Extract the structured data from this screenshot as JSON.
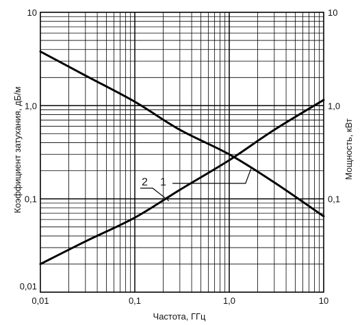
{
  "chart_data": {
    "type": "line",
    "xlabel": "Частота, ГГц",
    "ylabel_left": "Коэффициент затухания, дБ/м",
    "ylabel_right": "Мощность, кВт",
    "x_scale": "log",
    "y_scale": "log",
    "xlim": [
      0.01,
      10
    ],
    "ylim": [
      0.01,
      10
    ],
    "grid": true,
    "x_ticks": [
      {
        "value": 0.01,
        "label": "0,01"
      },
      {
        "value": 0.1,
        "label": "0,1"
      },
      {
        "value": 1,
        "label": "1,0"
      },
      {
        "value": 10,
        "label": "10"
      }
    ],
    "y_ticks_left": [
      {
        "value": 0.01,
        "label": "0,01"
      },
      {
        "value": 0.1,
        "label": "0,1"
      },
      {
        "value": 1,
        "label": "1,0"
      },
      {
        "value": 10,
        "label": "10"
      }
    ],
    "y_ticks_right": [
      {
        "value": 0.1,
        "label": "0,1"
      },
      {
        "value": 1,
        "label": "1,0"
      },
      {
        "value": 10,
        "label": "10"
      }
    ],
    "series": [
      {
        "name": "1",
        "x": [
          0.01,
          0.03,
          0.1,
          0.3,
          1,
          3,
          10
        ],
        "y": [
          3.8,
          2.1,
          1.1,
          0.55,
          0.3,
          0.15,
          0.065
        ]
      },
      {
        "name": "2",
        "x": [
          0.01,
          0.03,
          0.1,
          0.3,
          1,
          3,
          10
        ],
        "y": [
          0.02,
          0.035,
          0.063,
          0.125,
          0.26,
          0.55,
          1.15
        ]
      }
    ]
  }
}
